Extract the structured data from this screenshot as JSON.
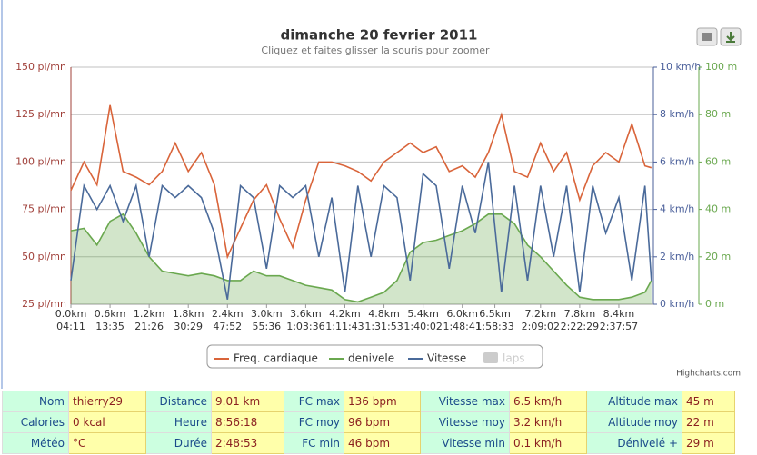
{
  "chart_data": {
    "type": "line",
    "title": "dimanche 20 fevrier 2011",
    "subtitle": "Cliquez et faites glisser la souris pour zoomer",
    "credits": "Highcharts.com",
    "x": [
      0,
      0.2,
      0.4,
      0.6,
      0.8,
      1.0,
      1.2,
      1.4,
      1.6,
      1.8,
      2.0,
      2.2,
      2.4,
      2.6,
      2.8,
      3.0,
      3.2,
      3.4,
      3.6,
      3.8,
      4.0,
      4.2,
      4.4,
      4.6,
      4.8,
      5.0,
      5.2,
      5.4,
      5.6,
      5.8,
      6.0,
      6.2,
      6.4,
      6.6,
      6.8,
      7.0,
      7.2,
      7.4,
      7.6,
      7.8,
      8.0,
      8.2,
      8.4,
      8.6,
      8.8,
      8.9
    ],
    "xlim": [
      0,
      8.93
    ],
    "xticks": [
      {
        "value": 0,
        "label": "0.0km"
      },
      {
        "value": 0.6,
        "label": "0.6km"
      },
      {
        "value": 1.2,
        "label": "1.2km"
      },
      {
        "value": 1.8,
        "label": "1.8km"
      },
      {
        "value": 2.4,
        "label": "2.4km"
      },
      {
        "value": 3.0,
        "label": "3.0km"
      },
      {
        "value": 3.6,
        "label": "3.6km"
      },
      {
        "value": 4.2,
        "label": "4.2km"
      },
      {
        "value": 4.8,
        "label": "4.8km"
      },
      {
        "value": 5.4,
        "label": "5.4km"
      },
      {
        "value": 6.0,
        "label": "6.0km"
      },
      {
        "value": 6.5,
        "label": "6.5km"
      },
      {
        "value": 7.2,
        "label": "7.2km"
      },
      {
        "value": 7.8,
        "label": "7.8km"
      },
      {
        "value": 8.4,
        "label": "8.4km"
      }
    ],
    "xtick_times": [
      "04:11",
      "13:35",
      "21:26",
      "30:29",
      "47:52",
      "55:36",
      "1:03:36",
      "1:11:43",
      "1:31:53",
      "1:40:02",
      "1:48:41",
      "1:58:33",
      "2:09:02",
      "2:22:29",
      "2:37:57"
    ],
    "ylim": [
      25,
      150
    ],
    "yticks": [
      {
        "value": 25,
        "label": "25 pl/mn"
      },
      {
        "value": 50,
        "label": "50 pl/mn"
      },
      {
        "value": 75,
        "label": "75 pl/mn"
      },
      {
        "value": 100,
        "label": "100 pl/mn"
      },
      {
        "value": 125,
        "label": "125 pl/mn"
      },
      {
        "value": 150,
        "label": "150 pl/mn"
      }
    ],
    "y2lim": [
      0,
      10
    ],
    "y2ticks": [
      {
        "value": 0,
        "label": "0 km/h"
      },
      {
        "value": 2,
        "label": "2 km/h"
      },
      {
        "value": 4,
        "label": "4 km/h"
      },
      {
        "value": 6,
        "label": "6 km/h"
      },
      {
        "value": 8,
        "label": "8 km/h"
      },
      {
        "value": 10,
        "label": "10 km/h"
      }
    ],
    "y3lim": [
      0,
      100
    ],
    "y3ticks": [
      {
        "value": 0,
        "label": "0 m"
      },
      {
        "value": 20,
        "label": "20 m"
      },
      {
        "value": 40,
        "label": "40 m"
      },
      {
        "value": 60,
        "label": "60 m"
      },
      {
        "value": 80,
        "label": "80 m"
      },
      {
        "value": 100,
        "label": "100 m"
      }
    ],
    "grid": true,
    "series": [
      {
        "name": "Freq. cardiaque",
        "color": "#d9643a",
        "axis": "y",
        "values": [
          85,
          100,
          88,
          130,
          95,
          92,
          88,
          95,
          110,
          95,
          105,
          88,
          50,
          65,
          80,
          88,
          70,
          55,
          80,
          100,
          100,
          98,
          95,
          90,
          100,
          105,
          110,
          105,
          108,
          95,
          98,
          92,
          105,
          125,
          95,
          92,
          110,
          95,
          105,
          80,
          98,
          105,
          100,
          120,
          98,
          97
        ]
      },
      {
        "name": "denivele",
        "color": "#6aa84f",
        "axis": "y3",
        "area": true,
        "values": [
          31,
          32,
          25,
          35,
          38,
          30,
          20,
          14,
          13,
          12,
          13,
          12,
          10,
          10,
          14,
          12,
          12,
          10,
          8,
          7,
          6,
          2,
          1,
          3,
          5,
          10,
          22,
          26,
          27,
          29,
          31,
          34,
          38,
          38,
          34,
          25,
          20,
          14,
          8,
          3,
          2,
          2,
          2,
          3,
          5,
          10
        ]
      },
      {
        "name": "Vitesse",
        "color": "#4a6a9a",
        "axis": "y2",
        "values": [
          1,
          5,
          4,
          5,
          3.5,
          5,
          2,
          5,
          4.5,
          5,
          4.5,
          3,
          0.2,
          5,
          4.5,
          1.5,
          5,
          4.5,
          5,
          2,
          4.5,
          0.5,
          5,
          2,
          5,
          4.5,
          1,
          5.5,
          5,
          1.5,
          5,
          3,
          6,
          0.5,
          5,
          1,
          5,
          2,
          5,
          0.5,
          5,
          3,
          4.5,
          1,
          5,
          1
        ]
      }
    ],
    "inactive_legend": [
      "laps"
    ]
  },
  "stats_table": {
    "rows": [
      [
        "Nom",
        "thierry29",
        "Distance",
        "9.01 km",
        "FC max",
        "136 bpm",
        "Vitesse max",
        "6.5 km/h",
        "Altitude max",
        "45 m"
      ],
      [
        "Calories",
        "0 kcal",
        "Heure",
        "8:56:18",
        "FC moy",
        "96 bpm",
        "Vitesse moy",
        "3.2 km/h",
        "Altitude moy",
        "22 m"
      ],
      [
        "Météo",
        "°C",
        "Durée",
        "2:48:53",
        "FC min",
        "46 bpm",
        "Vitesse min",
        "0.1 km/h",
        "Dénivelé +",
        "29 m"
      ]
    ]
  }
}
